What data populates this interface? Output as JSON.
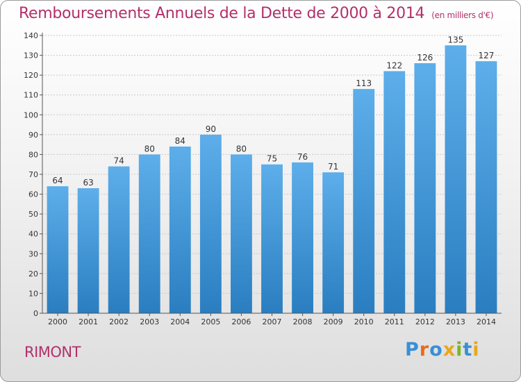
{
  "header": {
    "title": "Remboursements Annuels de la Dette de 2000 à 2014",
    "subtitle": "(en milliers d'€)"
  },
  "footer": {
    "city": "RIMONT",
    "logo_letters": [
      "P",
      "r",
      "o",
      "x",
      "i",
      "t",
      "i"
    ]
  },
  "colors": {
    "title": "#b2306a",
    "bar_light": "#5daeea",
    "bar_dark": "#2a7ec0",
    "grid": "#c8c8c8",
    "axis": "#555555"
  },
  "chart_data": {
    "type": "bar",
    "title": "Remboursements Annuels de la Dette de 2000 à 2014",
    "xlabel": "",
    "ylabel": "",
    "categories": [
      "2000",
      "2001",
      "2002",
      "2003",
      "2004",
      "2005",
      "2006",
      "2007",
      "2008",
      "2009",
      "2010",
      "2011",
      "2012",
      "2013",
      "2014"
    ],
    "values": [
      64,
      63,
      74,
      80,
      84,
      90,
      80,
      75,
      76,
      71,
      113,
      122,
      126,
      135,
      127
    ],
    "ylim": [
      0,
      140
    ],
    "yticks": [
      0,
      10,
      20,
      30,
      40,
      50,
      60,
      70,
      80,
      90,
      100,
      110,
      120,
      130,
      140
    ],
    "grid": true,
    "data_labels": true
  }
}
